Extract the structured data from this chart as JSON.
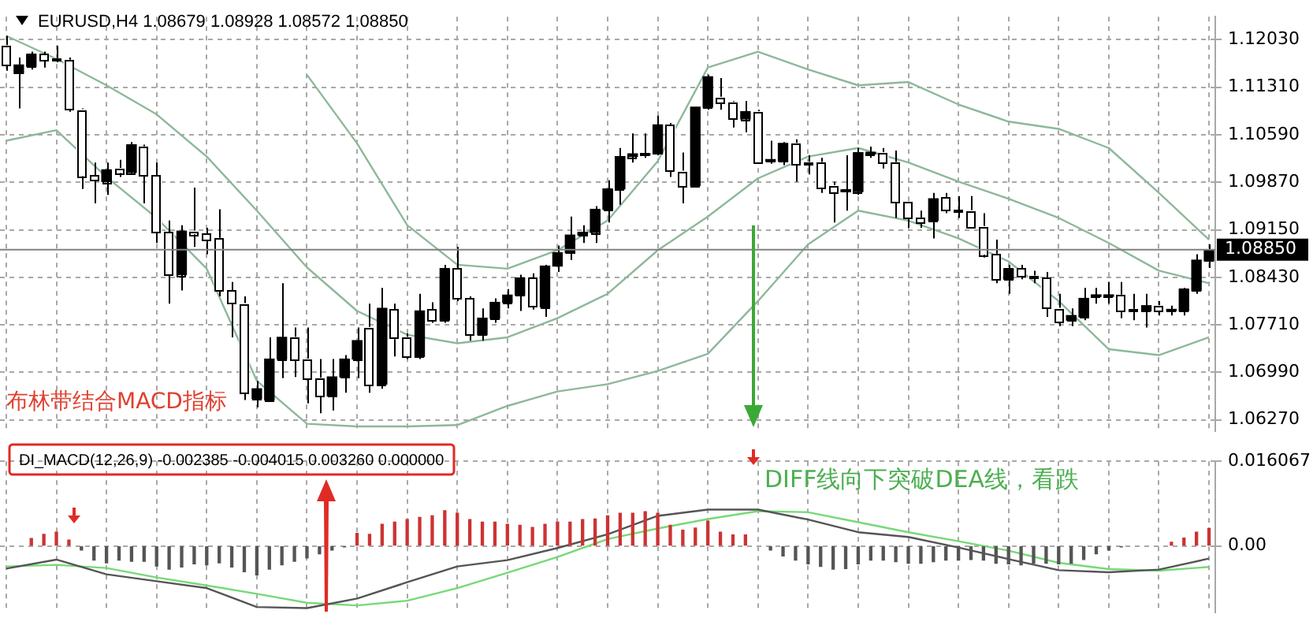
{
  "chart_data": [
    {
      "type": "candlestick",
      "title": "EURUSD,H4 1.08679 1.08928 1.08572 1.08850",
      "categories": [
        null,
        null,
        null,
        null,
        null,
        null,
        null,
        null,
        null,
        null,
        null,
        null,
        null,
        null,
        null,
        null,
        null,
        null,
        null,
        null,
        null,
        null,
        null,
        null,
        null,
        null,
        null,
        null,
        null,
        null,
        null,
        null,
        null,
        null,
        null,
        null,
        null,
        null,
        null,
        null,
        null,
        null,
        null,
        null,
        null,
        null,
        null,
        null,
        null,
        null,
        null,
        null,
        null,
        null,
        null,
        null,
        null,
        null,
        null,
        null,
        null,
        null,
        null,
        null,
        null,
        null,
        null,
        null,
        null,
        null,
        null,
        null,
        null,
        null,
        null,
        null,
        null,
        null,
        null,
        null,
        null,
        null,
        null,
        null,
        null,
        null,
        null,
        null,
        null,
        null,
        null,
        null,
        null,
        null,
        null,
        null,
        null
      ],
      "ohlc": [
        [
          1.1194,
          1.1209,
          1.1156,
          1.1165
        ],
        [
          1.1152,
          1.1176,
          1.1099,
          1.1165
        ],
        [
          1.1163,
          1.1185,
          1.1158,
          1.1181
        ],
        [
          1.1181,
          1.1185,
          1.1161,
          1.1172
        ],
        [
          1.1174,
          1.1194,
          1.1169,
          1.1172
        ],
        [
          1.1172,
          1.1176,
          1.1094,
          1.1097
        ],
        [
          1.1097,
          1.1099,
          1.0977,
          1.0997
        ],
        [
          1.0997,
          1.1017,
          1.0955,
          1.099
        ],
        [
          1.0988,
          1.1017,
          1.0968,
          1.1006
        ],
        [
          1.1008,
          1.1021,
          1.0995,
          1.1002
        ],
        [
          1.1002,
          1.1048,
          1.0999,
          1.1044
        ],
        [
          1.1041,
          1.1044,
          1.0955,
          1.0997
        ],
        [
          1.0997,
          1.1017,
          1.0895,
          1.0911
        ],
        [
          1.0911,
          1.0929,
          1.0803,
          1.0847
        ],
        [
          1.0847,
          1.0922,
          1.0823,
          1.0913
        ],
        [
          1.0913,
          1.0979,
          1.0889,
          1.0909
        ],
        [
          1.0909,
          1.0918,
          1.0878,
          1.09
        ],
        [
          1.0902,
          1.0946,
          1.0814,
          1.0823
        ],
        [
          1.0823,
          1.0836,
          1.0752,
          1.0803
        ],
        [
          1.0803,
          1.0814,
          1.0657,
          1.0668
        ],
        [
          1.0659,
          1.0686,
          1.0646,
          1.0674
        ],
        [
          1.0657,
          1.0752,
          1.0655,
          1.0719
        ],
        [
          1.0719,
          1.0834,
          1.069,
          1.0752
        ],
        [
          1.0752,
          1.0767,
          1.0692,
          1.0719
        ],
        [
          1.0719,
          1.0767,
          1.0652,
          1.069
        ],
        [
          1.069,
          1.0719,
          1.0637,
          1.0663
        ],
        [
          1.0663,
          1.0719,
          1.0641,
          1.0692
        ],
        [
          1.0692,
          1.0725,
          1.0668,
          1.0719
        ],
        [
          1.0719,
          1.0767,
          1.069,
          1.0747
        ],
        [
          1.0767,
          1.0803,
          1.0668,
          1.0681
        ],
        [
          1.0681,
          1.0827,
          1.0674,
          1.0796
        ],
        [
          1.0794,
          1.0803,
          1.0723,
          1.075
        ],
        [
          1.0752,
          1.0758,
          1.0719,
          1.0723
        ],
        [
          1.0723,
          1.0818,
          1.0719,
          1.0792
        ],
        [
          1.0794,
          1.0805,
          1.0774,
          1.0778
        ],
        [
          1.0778,
          1.0862,
          1.0774,
          1.0856
        ],
        [
          1.0856,
          1.0889,
          1.0807,
          1.0811
        ],
        [
          1.0811,
          1.0814,
          1.0747,
          1.0756
        ],
        [
          1.0756,
          1.0796,
          1.0747,
          1.0781
        ],
        [
          1.0781,
          1.0811,
          1.0774,
          1.0805
        ],
        [
          1.0805,
          1.0825,
          1.0796,
          1.0816
        ],
        [
          1.0816,
          1.0847,
          1.0792,
          1.0842
        ],
        [
          1.0842,
          1.0849,
          1.0794,
          1.0798
        ],
        [
          1.0798,
          1.0862,
          1.0783,
          1.086
        ],
        [
          1.086,
          1.0891,
          1.0851,
          1.088
        ],
        [
          1.088,
          1.0935,
          1.0869,
          1.0907
        ],
        [
          1.0907,
          1.0922,
          1.0895,
          1.0911
        ],
        [
          1.0911,
          1.0951,
          1.0895,
          1.0946
        ],
        [
          1.0946,
          1.099,
          1.0926,
          1.0977
        ],
        [
          1.0977,
          1.1039,
          1.0953,
          1.1026
        ],
        [
          1.1026,
          1.1061,
          1.1017,
          1.103
        ],
        [
          1.1028,
          1.1061,
          1.1024,
          1.103
        ],
        [
          1.103,
          1.1088,
          1.1028,
          1.1074
        ],
        [
          1.1074,
          1.1077,
          1.0995,
          1.1004
        ],
        [
          1.1004,
          1.1032,
          1.0955,
          1.0982
        ],
        [
          1.0982,
          1.1101,
          1.0979,
          1.1101
        ],
        [
          1.1101,
          1.115,
          1.1097,
          1.1147
        ],
        [
          1.1116,
          1.1145,
          1.1097,
          1.1108
        ],
        [
          1.1108,
          1.111,
          1.107,
          1.1083
        ],
        [
          1.1083,
          1.111,
          1.1063,
          1.1094
        ],
        [
          1.1094,
          1.1097,
          1.1015,
          1.1017
        ],
        [
          1.1019,
          1.105,
          1.1015,
          1.1021
        ],
        [
          1.1019,
          1.1048,
          1.1013,
          1.1046
        ],
        [
          1.1046,
          1.1052,
          1.0988,
          1.1015
        ],
        [
          1.1017,
          1.1028,
          1.0999,
          1.1015
        ],
        [
          1.1017,
          1.1024,
          1.0971,
          1.0979
        ],
        [
          1.0982,
          1.0988,
          1.0926,
          1.0973
        ],
        [
          1.0973,
          1.1028,
          1.0944,
          1.0975
        ],
        [
          1.0973,
          1.1039,
          1.0968,
          1.1032
        ],
        [
          1.103,
          1.1041,
          1.1024,
          1.1032
        ],
        [
          1.1032,
          1.1039,
          1.1008,
          1.1017
        ],
        [
          1.1017,
          1.1035,
          1.0933,
          1.0957
        ],
        [
          1.0957,
          1.0957,
          1.0918,
          1.0933
        ],
        [
          1.0933,
          1.0944,
          1.0918,
          1.0926
        ],
        [
          1.0929,
          1.0971,
          1.0902,
          1.0962
        ],
        [
          1.0964,
          1.0971,
          1.094,
          1.0944
        ],
        [
          1.0944,
          1.0966,
          1.0933,
          1.0942
        ],
        [
          1.0944,
          1.0966,
          1.0918,
          1.092
        ],
        [
          1.092,
          1.094,
          1.0873,
          1.0878
        ],
        [
          1.0878,
          1.09,
          1.0834,
          1.084
        ],
        [
          1.084,
          1.0862,
          1.0818,
          1.0856
        ],
        [
          1.0856,
          1.0862,
          1.084,
          1.0845
        ],
        [
          1.0845,
          1.0853,
          1.0834,
          1.0842
        ],
        [
          1.0842,
          1.0851,
          1.0783,
          1.0796
        ],
        [
          1.0796,
          1.0818,
          1.0769,
          1.0776
        ],
        [
          1.0778,
          1.0796,
          1.0769,
          1.0785
        ],
        [
          1.0783,
          1.0827,
          1.0778,
          1.0811
        ],
        [
          1.0814,
          1.0827,
          1.0803,
          1.0816
        ],
        [
          1.0814,
          1.0836,
          1.0803,
          1.0816
        ],
        [
          1.0816,
          1.0836,
          1.0781,
          1.0792
        ],
        [
          1.0794,
          1.0818,
          1.0778,
          1.0792
        ],
        [
          1.0792,
          1.0818,
          1.0767,
          1.08
        ],
        [
          1.08,
          1.0807,
          1.0785,
          1.0792
        ],
        [
          1.0792,
          1.08,
          1.0785,
          1.0794
        ],
        [
          1.0792,
          1.0827,
          1.0785,
          1.0825
        ],
        [
          1.0823,
          1.0878,
          1.0818,
          1.0869
        ],
        [
          1.08679,
          1.08928,
          1.08572,
          1.0885
        ]
      ],
      "colors": [
        "#ffffff",
        "#000000",
        "#000000",
        "#ffffff",
        "#ffffff",
        "#ffffff",
        "#ffffff",
        "#ffffff",
        "#000000",
        "#ffffff",
        "#000000",
        "#ffffff",
        "#ffffff",
        "#ffffff",
        "#000000",
        "#ffffff",
        "#ffffff",
        "#ffffff",
        "#ffffff",
        "#ffffff",
        "#000000",
        "#000000",
        "#000000",
        "#ffffff",
        "#ffffff",
        "#ffffff",
        "#000000",
        "#000000",
        "#000000",
        "#ffffff",
        "#000000",
        "#ffffff",
        "#ffffff",
        "#000000",
        "#ffffff",
        "#000000",
        "#ffffff",
        "#ffffff",
        "#000000",
        "#000000",
        "#000000",
        "#000000",
        "#ffffff",
        "#000000",
        "#000000",
        "#000000",
        "#000000",
        "#000000",
        "#000000",
        "#000000",
        "#000000",
        "#000000",
        "#000000",
        "#ffffff",
        "#ffffff",
        "#000000",
        "#000000",
        "#ffffff",
        "#ffffff",
        "#000000",
        "#ffffff",
        "#000000",
        "#000000",
        "#ffffff",
        "#ffffff",
        "#ffffff",
        "#ffffff",
        "#000000",
        "#000000",
        "#000000",
        "#ffffff",
        "#ffffff",
        "#ffffff",
        "#ffffff",
        "#000000",
        "#ffffff",
        "#ffffff",
        "#ffffff",
        "#ffffff",
        "#ffffff",
        "#000000",
        "#ffffff",
        "#ffffff",
        "#ffffff",
        "#ffffff",
        "#000000",
        "#000000",
        "#000000",
        "#000000",
        "#ffffff",
        "#ffffff",
        "#000000",
        "#ffffff",
        "#000000",
        "#000000",
        "#000000",
        "#000000"
      ],
      "series": [
        {
          "type": "line",
          "color": "#8db89a",
          "values": [
            null,
            null,
            null,
            null,
            null,
            null,
            null,
            null,
            null,
            null,
            null,
            null,
            null,
            null,
            null,
            null,
            null,
            null,
            null,
            null,
            null,
            null,
            null,
            null,
            1.115,
            null,
            null,
            null,
            1.1046,
            null,
            null,
            null,
            1.0922,
            null,
            null,
            null,
            1.0862,
            null,
            null,
            null,
            1.0856,
            null,
            null,
            null,
            1.0884,
            null,
            null,
            null,
            1.0929,
            null,
            null,
            null,
            1.1019,
            null,
            null,
            null,
            1.1161,
            null,
            null,
            null,
            1.1185,
            null,
            null,
            null,
            1.1158,
            null,
            null,
            null,
            1.1134,
            null,
            null,
            null,
            1.1139,
            null,
            null,
            null,
            1.1105,
            null,
            null,
            null,
            1.1079,
            null,
            null,
            null,
            1.1068,
            null,
            null,
            null,
            1.1039,
            null,
            null,
            null,
            1.0971,
            null,
            null,
            null,
            1.09
          ]
        },
        {
          "type": "line",
          "color": "#8db89a",
          "values": [
            1.1209,
            null,
            null,
            null,
            1.1174,
            null,
            null,
            null,
            1.1134,
            null,
            null,
            null,
            1.109,
            null,
            null,
            null,
            1.1026,
            null,
            null,
            null,
            1.0944,
            null,
            null,
            null,
            1.0858,
            null,
            null,
            null,
            1.0792,
            null,
            null,
            null,
            1.0756,
            null,
            null,
            null,
            1.0743,
            null,
            null,
            null,
            1.0752,
            null,
            null,
            null,
            1.0781,
            null,
            null,
            null,
            1.0818,
            null,
            null,
            null,
            1.0884,
            null,
            null,
            null,
            1.0935,
            null,
            null,
            null,
            1.0993,
            null,
            null,
            null,
            1.1026,
            null,
            null,
            null,
            1.1039,
            null,
            null,
            null,
            1.1017,
            null,
            null,
            null,
            1.0988,
            null,
            null,
            null,
            1.0962,
            null,
            null,
            null,
            1.0933,
            null,
            null,
            null,
            1.0895,
            null,
            null,
            null,
            1.0853,
            null,
            null,
            null,
            1.0834
          ]
        },
        {
          "type": "line",
          "color": "#8db89a",
          "values": [
            1.105,
            null,
            null,
            null,
            1.1066,
            null,
            null,
            null,
            1.0995,
            null,
            null,
            null,
            1.0933,
            null,
            null,
            null,
            1.0856,
            null,
            null,
            null,
            1.0686,
            null,
            null,
            null,
            1.0621,
            null,
            null,
            null,
            1.0617,
            null,
            null,
            null,
            1.0617,
            null,
            null,
            null,
            1.0619,
            null,
            null,
            null,
            1.0648,
            null,
            null,
            null,
            1.067,
            null,
            null,
            null,
            1.0681,
            null,
            null,
            null,
            1.0701,
            null,
            null,
            null,
            1.0727,
            null,
            null,
            null,
            1.0807,
            null,
            null,
            null,
            1.0893,
            null,
            null,
            null,
            1.0944,
            null,
            null,
            null,
            1.0929,
            null,
            null,
            null,
            1.0902,
            null,
            null,
            null,
            1.0867,
            null,
            null,
            null,
            1.0807,
            null,
            null,
            null,
            1.0734,
            null,
            null,
            null,
            1.0725,
            null,
            null,
            null,
            1.0752
          ]
        }
      ],
      "ylim": [
        1.061,
        1.1238
      ],
      "yticks": [
        {
          "value": 1.1203,
          "label": "1.12030"
        },
        {
          "value": 1.1131,
          "label": "1.11310"
        },
        {
          "value": 1.1059,
          "label": "1.10590"
        },
        {
          "value": 1.0987,
          "label": "1.09870"
        },
        {
          "value": 1.0915,
          "label": "1.09150"
        },
        {
          "value": 1.0843,
          "label": "1.08430"
        },
        {
          "value": 1.0771,
          "label": "1.07710"
        },
        {
          "value": 1.0699,
          "label": "1.06990"
        },
        {
          "value": 1.0627,
          "label": "1.06270"
        }
      ],
      "ref_lines": [
        {
          "axis": "y",
          "value": 1.0885,
          "label": "1.08850",
          "color": "#808080"
        }
      ],
      "grid": true,
      "legend": false,
      "tick_labels": "y",
      "marker": "none",
      "annotations": [
        "布林带结合MACD指标"
      ]
    },
    {
      "type": "bar",
      "title": "DI_MACD(12,26,9) -0.002385 -0.004015 0.003260 0.000000",
      "categories": [
        null,
        null,
        null,
        null,
        null,
        null,
        null,
        null,
        null,
        null,
        null,
        null,
        null,
        null,
        null,
        null,
        null,
        null,
        null,
        null,
        null,
        null,
        null,
        null,
        null,
        null,
        null,
        null,
        null,
        null,
        null,
        null,
        null,
        null,
        null,
        null,
        null,
        null,
        null,
        null,
        null,
        null,
        null,
        null,
        null,
        null,
        null,
        null,
        null,
        null,
        null,
        null,
        null,
        null,
        null,
        null,
        null,
        null,
        null,
        null,
        null,
        null,
        null,
        null,
        null,
        null,
        null,
        null,
        null,
        null,
        null,
        null,
        null,
        null,
        null,
        null,
        null,
        null,
        null,
        null,
        null,
        null,
        null,
        null,
        null,
        null,
        null,
        null,
        null,
        null,
        null,
        null,
        null,
        null,
        null,
        null,
        null
      ],
      "series": [
        {
          "type": "bar",
          "colors": [
            "#555555",
            "#555555",
            "#cc3333",
            "#cc3333",
            "#cc3333",
            "#cc3333",
            "#555555",
            "#555555",
            "#555555",
            "#555555",
            "#555555",
            "#555555",
            "#555555",
            "#555555",
            "#555555",
            "#555555",
            "#555555",
            "#555555",
            "#555555",
            "#555555",
            "#555555",
            "#555555",
            "#555555",
            "#555555",
            "#555555",
            "#555555",
            "#555555",
            "#555555",
            "#cc3333",
            "#cc3333",
            "#cc3333",
            "#cc3333",
            "#cc3333",
            "#cc3333",
            "#cc3333",
            "#cc3333",
            "#cc3333",
            "#cc3333",
            "#cc3333",
            "#cc3333",
            "#cc3333",
            "#cc3333",
            "#cc3333",
            "#cc3333",
            "#cc3333",
            "#cc3333",
            "#cc3333",
            "#cc3333",
            "#cc3333",
            "#cc3333",
            "#cc3333",
            "#cc3333",
            "#cc3333",
            "#cc3333",
            "#cc3333",
            "#cc3333",
            "#cc3333",
            "#cc3333",
            "#cc3333",
            "#cc3333",
            "#555555",
            "#555555",
            "#555555",
            "#555555",
            "#555555",
            "#555555",
            "#555555",
            "#555555",
            "#555555",
            "#555555",
            "#555555",
            "#555555",
            "#555555",
            "#555555",
            "#555555",
            "#555555",
            "#555555",
            "#555555",
            "#555555",
            "#555555",
            "#555555",
            "#555555",
            "#555555",
            "#555555",
            "#555555",
            "#555555",
            "#555555",
            "#555555",
            "#555555",
            "#555555",
            "#cc3333",
            "#cc3333",
            "#cc3333",
            "#cc3333",
            "#cc3333",
            "#cc3333",
            "#cc3333"
          ],
          "values": [
            null,
            null,
            0.0014,
            0.0022,
            0.0026,
            0.0011,
            -0.0008,
            -0.0027,
            -0.0032,
            -0.0027,
            -0.0029,
            -0.0029,
            -0.0038,
            -0.0044,
            -0.004,
            -0.0034,
            -0.0036,
            -0.0032,
            -0.004,
            -0.0049,
            -0.0055,
            -0.0044,
            -0.0036,
            -0.0029,
            -0.0023,
            -0.0015,
            -0.0008,
            -0.0002,
            0.0024,
            0.0022,
            0.0041,
            0.0045,
            0.005,
            0.0054,
            0.0057,
            0.0067,
            0.0062,
            0.005,
            0.0045,
            0.0045,
            0.0041,
            0.0039,
            0.0035,
            0.0041,
            0.0045,
            0.0045,
            0.005,
            0.0051,
            0.0057,
            0.0062,
            0.0062,
            0.0065,
            0.0062,
            0.0039,
            0.003,
            0.0034,
            0.0047,
            0.0026,
            0.0021,
            0.0021,
            null,
            -0.0008,
            -0.0019,
            -0.0027,
            -0.0034,
            -0.0039,
            -0.0044,
            -0.0043,
            -0.0034,
            -0.0027,
            -0.0027,
            -0.003,
            -0.0033,
            -0.0033,
            -0.003,
            -0.0027,
            -0.0027,
            -0.0026,
            -0.0027,
            -0.0033,
            -0.0034,
            -0.0036,
            -0.0033,
            -0.0033,
            -0.0034,
            -0.0033,
            -0.0026,
            -0.0015,
            -0.0008,
            -0.0002,
            null,
            null,
            null,
            0.0007,
            0.0015,
            0.0026,
            0.0033
          ]
        },
        {
          "type": "line",
          "color": "#555555",
          "values": [
            -0.0043,
            null,
            null,
            null,
            -0.0026,
            null,
            null,
            null,
            -0.0054,
            null,
            null,
            null,
            -0.0067,
            null,
            null,
            null,
            -0.008,
            null,
            null,
            null,
            -0.0116,
            null,
            null,
            null,
            -0.0118,
            null,
            null,
            null,
            -0.01,
            null,
            null,
            null,
            -0.0069,
            null,
            null,
            null,
            -0.0039,
            null,
            null,
            null,
            -0.0027,
            null,
            null,
            null,
            -0.0004,
            null,
            null,
            null,
            0.0022,
            null,
            null,
            null,
            0.0057,
            null,
            null,
            null,
            0.0069,
            null,
            null,
            null,
            0.0069,
            null,
            null,
            null,
            0.005,
            null,
            null,
            null,
            0.0026,
            null,
            null,
            null,
            0.0017,
            null,
            null,
            null,
            -0.0003,
            null,
            null,
            null,
            -0.0025,
            null,
            null,
            null,
            -0.0046,
            null,
            null,
            null,
            -0.005,
            null,
            null,
            null,
            -0.0045,
            null,
            null,
            null,
            -0.0024
          ]
        },
        {
          "type": "line",
          "color": "#77d977",
          "values": [
            -0.0039,
            null,
            null,
            null,
            -0.0036,
            null,
            null,
            null,
            -0.0042,
            null,
            null,
            null,
            -0.006,
            null,
            null,
            null,
            -0.0075,
            null,
            null,
            null,
            -0.0091,
            null,
            null,
            null,
            -0.0108,
            null,
            null,
            null,
            -0.0113,
            null,
            null,
            null,
            -0.0104,
            null,
            null,
            null,
            -0.008,
            null,
            null,
            null,
            -0.0051,
            null,
            null,
            null,
            -0.0021,
            null,
            null,
            null,
            0.0013,
            null,
            null,
            null,
            0.0033,
            null,
            null,
            null,
            0.0051,
            null,
            null,
            null,
            0.0066,
            null,
            null,
            null,
            0.0064,
            null,
            null,
            null,
            0.0045,
            null,
            null,
            null,
            0.0026,
            null,
            null,
            null,
            0.0009,
            null,
            null,
            null,
            -0.0009,
            null,
            null,
            null,
            -0.0032,
            null,
            null,
            null,
            -0.0044,
            null,
            null,
            null,
            -0.0047,
            null,
            null,
            null,
            -0.004
          ]
        }
      ],
      "ylim": [
        -0.0126,
        0.016067
      ],
      "yticks": [
        {
          "value": 0.016067,
          "label": "0.016067"
        },
        {
          "value": 0,
          "label": "0.00"
        }
      ],
      "grid": true,
      "legend": false,
      "tick_labels": "y",
      "marker": "none",
      "annotations": [
        "DIFF线向下突破DEA线，看跌"
      ]
    }
  ]
}
